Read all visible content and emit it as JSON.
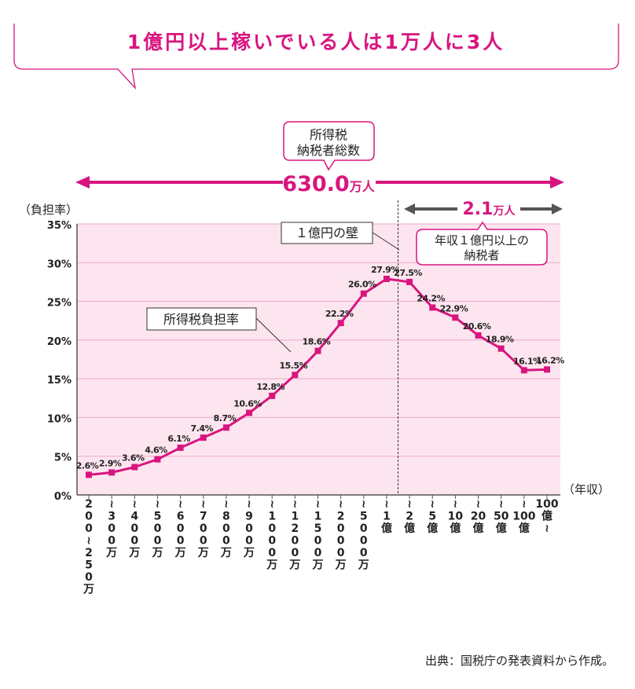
{
  "banner": {
    "title": "1億円以上稼いでいる人は1万人に3人"
  },
  "callout_total": {
    "line1": "所得税",
    "line2": "納税者総数"
  },
  "total": {
    "value": "630.0",
    "unit": "万人"
  },
  "subtotal": {
    "value": "2.1",
    "unit": "万人"
  },
  "callout_subtotal": {
    "line1": "年収１億円以上の",
    "line2": "納税者"
  },
  "callout_wall": {
    "text": "１億円の壁"
  },
  "callout_series": {
    "text": "所得税負担率"
  },
  "source": "出典：国税庁の発表資料から作成。",
  "colors": {
    "accent": "#d8157f",
    "plot_bg": "#fde5ef",
    "grid": "#e9a9c8",
    "dark": "#555555"
  },
  "chart_data": {
    "type": "line",
    "ylabel": "（負担率）",
    "xlabel": "（年収）",
    "ylim": [
      0,
      35
    ],
    "y_ticks": [
      "0%",
      "5%",
      "10%",
      "15%",
      "20%",
      "25%",
      "30%",
      "35%"
    ],
    "categories": [
      "200〜250万",
      "〜300万",
      "〜400万",
      "〜500万",
      "〜600万",
      "〜700万",
      "〜800万",
      "〜900万",
      "〜1000万",
      "〜1200万",
      "〜1500万",
      "〜2000万",
      "〜5000万",
      "〜1億",
      "〜2億",
      "〜5億",
      "〜10億",
      "〜20億",
      "〜50億",
      "〜100億",
      "100億〜"
    ],
    "series": [
      {
        "values": [
          2.6,
          2.9,
          3.6,
          4.6,
          6.1,
          7.4,
          8.7,
          10.6,
          12.8,
          15.5,
          18.6,
          22.2,
          26.0,
          27.9,
          27.5,
          24.2,
          22.9,
          20.6,
          18.9,
          16.1,
          16.2
        ]
      }
    ],
    "data_labels": [
      "2.6%",
      "2.9%",
      "3.6%",
      "4.6%",
      "6.1%",
      "7.4%",
      "8.7%",
      "10.6%",
      "12.8%",
      "15.5%",
      "18.6%",
      "22.2%",
      "26.0%",
      "27.9%",
      "27.5%",
      "24.2%",
      "22.9%",
      "20.6%",
      "18.9%",
      "16.1%",
      "16.2%"
    ],
    "grid": true,
    "divider_after_category": "〜1億"
  }
}
